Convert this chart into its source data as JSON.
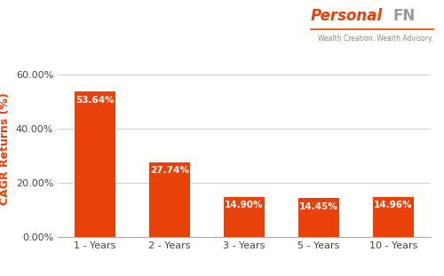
{
  "categories": [
    "1 - Years",
    "2 - Years",
    "3 - Years",
    "5 - Years",
    "10 - Years"
  ],
  "values": [
    53.64,
    27.74,
    14.9,
    14.45,
    14.96
  ],
  "labels": [
    "53.64%",
    "27.74%",
    "14.90%",
    "14.45%",
    "14.96%"
  ],
  "bar_color": "#E8410A",
  "ylabel": "CAGR Returns (%)",
  "ylabel_color": "#E8410A",
  "ylim": [
    0,
    65
  ],
  "yticks": [
    0,
    20,
    40,
    60
  ],
  "ytick_labels": [
    "0.00%",
    "20.00%",
    "40.00%",
    "60.00%"
  ],
  "grid_color": "#d0d0d0",
  "bg_color": "#ffffff",
  "bar_label_color": "#ffffff",
  "bar_label_fontsize": 7.5,
  "tick_fontsize": 8,
  "ylabel_fontsize": 9,
  "logo_text_personal": "Personal",
  "logo_text_fn": "FN",
  "logo_subtext": "Wealth Creation. Wealth Advisory.",
  "logo_color_personal": "#E8410A",
  "logo_color_fn": "#999999",
  "logo_subtext_color": "#888888",
  "logo_line_color": "#E8410A"
}
